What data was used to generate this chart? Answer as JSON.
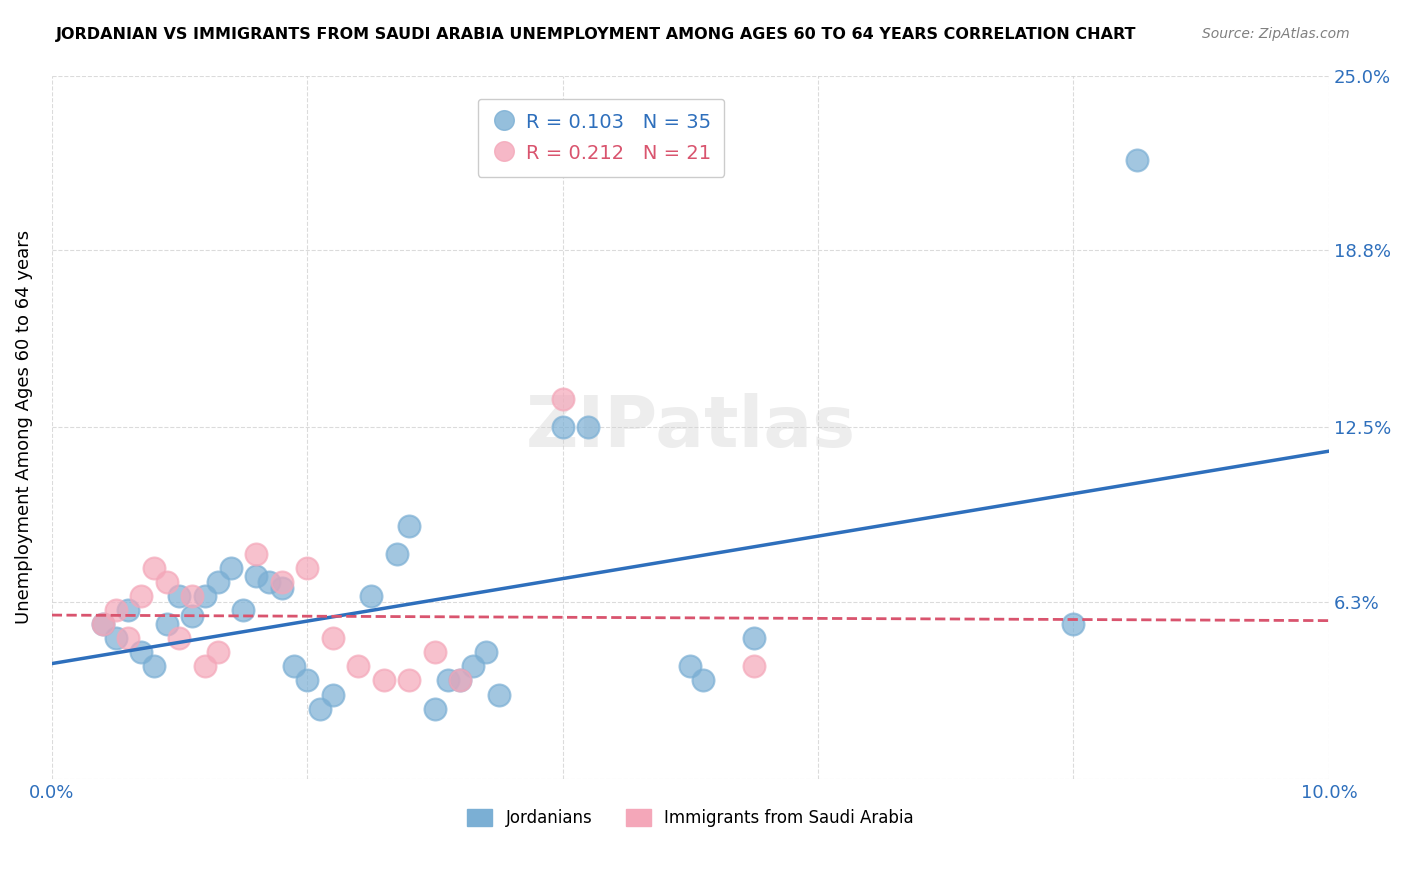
{
  "title": "JORDANIAN VS IMMIGRANTS FROM SAUDI ARABIA UNEMPLOYMENT AMONG AGES 60 TO 64 YEARS CORRELATION CHART",
  "source": "Source: ZipAtlas.com",
  "xlabel": "",
  "ylabel": "Unemployment Among Ages 60 to 64 years",
  "xlim": [
    0.0,
    0.1
  ],
  "ylim": [
    0.0,
    0.25
  ],
  "xticks": [
    0.0,
    0.02,
    0.04,
    0.06,
    0.08,
    0.1
  ],
  "xticklabels": [
    "0.0%",
    "",
    "",
    "",
    "",
    "10.0%"
  ],
  "yticks": [
    0.0,
    0.063,
    0.125,
    0.188,
    0.25
  ],
  "yticklabels": [
    "",
    "6.3%",
    "12.5%",
    "18.8%",
    "25.0%"
  ],
  "jordanians_x": [
    0.004,
    0.005,
    0.006,
    0.007,
    0.008,
    0.009,
    0.01,
    0.011,
    0.012,
    0.013,
    0.014,
    0.015,
    0.016,
    0.017,
    0.018,
    0.019,
    0.02,
    0.021,
    0.022,
    0.025,
    0.027,
    0.028,
    0.03,
    0.031,
    0.032,
    0.033,
    0.034,
    0.035,
    0.04,
    0.042,
    0.05,
    0.051,
    0.055,
    0.08,
    0.085
  ],
  "jordanians_y": [
    0.055,
    0.05,
    0.06,
    0.045,
    0.04,
    0.055,
    0.065,
    0.058,
    0.065,
    0.07,
    0.075,
    0.06,
    0.072,
    0.07,
    0.068,
    0.04,
    0.035,
    0.025,
    0.03,
    0.065,
    0.08,
    0.09,
    0.025,
    0.035,
    0.035,
    0.04,
    0.045,
    0.03,
    0.125,
    0.125,
    0.04,
    0.035,
    0.05,
    0.055,
    0.22
  ],
  "immigrants_x": [
    0.004,
    0.005,
    0.006,
    0.007,
    0.008,
    0.009,
    0.01,
    0.011,
    0.012,
    0.013,
    0.016,
    0.018,
    0.02,
    0.022,
    0.024,
    0.026,
    0.028,
    0.03,
    0.032,
    0.04,
    0.055
  ],
  "immigrants_y": [
    0.055,
    0.06,
    0.05,
    0.065,
    0.075,
    0.07,
    0.05,
    0.065,
    0.04,
    0.045,
    0.08,
    0.07,
    0.075,
    0.05,
    0.04,
    0.035,
    0.035,
    0.045,
    0.035,
    0.135,
    0.04
  ],
  "jordanians_color": "#7BAFD4",
  "immigrants_color": "#F4A7B9",
  "jordanians_trend_color": "#2E6FBC",
  "immigrants_trend_color": "#D9546E",
  "legend_R_jordan": "R = 0.103",
  "legend_N_jordan": "N = 35",
  "legend_R_immig": "R = 0.212",
  "legend_N_immig": "N = 21",
  "watermark": "ZIPatlas",
  "background_color": "#ffffff",
  "grid_color": "#cccccc"
}
